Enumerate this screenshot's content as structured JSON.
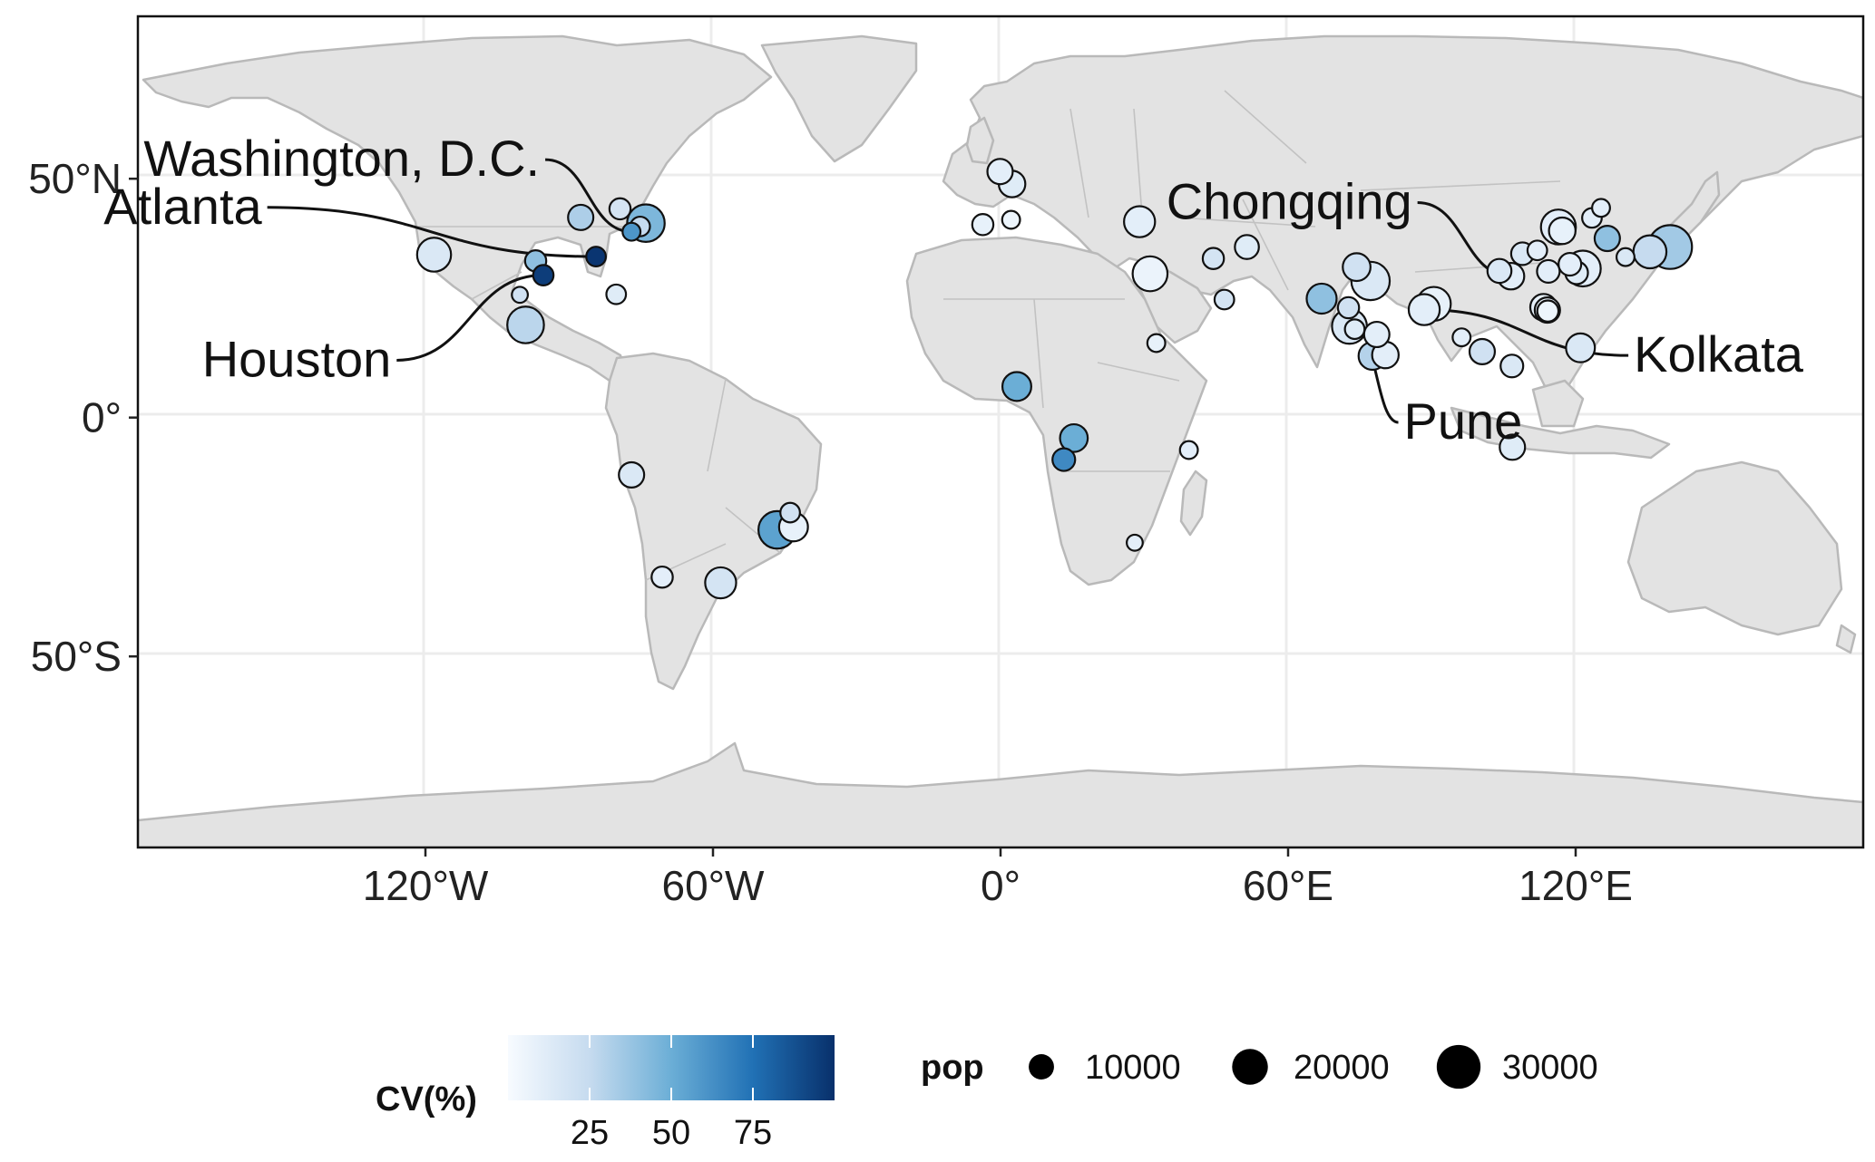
{
  "map": {
    "lon_ticks": [
      {
        "lon": -120,
        "label": "120°W"
      },
      {
        "lon": -60,
        "label": "60°W"
      },
      {
        "lon": 0,
        "label": "0°"
      },
      {
        "lon": 60,
        "label": "60°E"
      },
      {
        "lon": 120,
        "label": "120°E"
      }
    ],
    "lat_ticks": [
      {
        "lat": 50,
        "label": "50°N"
      },
      {
        "lat": 0,
        "label": "0°"
      },
      {
        "lat": -50,
        "label": "50°S"
      }
    ],
    "lon_range": [
      -180,
      180
    ],
    "lat_range": [
      -90,
      84
    ],
    "labels": [
      {
        "text": "Washington, D.C.",
        "lon": -77,
        "lat": 38.9,
        "text_lon": -95,
        "text_lat": 54
      },
      {
        "text": "Atlanta",
        "lon": -84.4,
        "lat": 33.7,
        "text_lon": -153,
        "text_lat": 44
      },
      {
        "text": "Houston",
        "lon": -95.4,
        "lat": 29.8,
        "text_lon": -126,
        "text_lat": 12
      },
      {
        "text": "Chongqing",
        "lon": 106.5,
        "lat": 29.6,
        "text_lon": 87,
        "text_lat": 45
      },
      {
        "text": "Kolkata",
        "lon": 88.4,
        "lat": 22.6,
        "text_lon": 131,
        "text_lat": 13
      },
      {
        "text": "Pune",
        "lon": 73.9,
        "lat": 18.5,
        "text_lon": 83,
        "text_lat": -1
      }
    ]
  },
  "cities": [
    {
      "lon": -118.2,
      "lat": 34.1,
      "pop": 18000,
      "cv": 15
    },
    {
      "lon": -97,
      "lat": 32.8,
      "pop": 7000,
      "cv": 40
    },
    {
      "lon": -95.4,
      "lat": 29.8,
      "pop": 6500,
      "cv": 95
    },
    {
      "lon": -99.1,
      "lat": 19.4,
      "pop": 21000,
      "cv": 28
    },
    {
      "lon": -100.3,
      "lat": 25.7,
      "pop": 4000,
      "cv": 20
    },
    {
      "lon": -87.6,
      "lat": 41.9,
      "pop": 10000,
      "cv": 32
    },
    {
      "lon": -84.4,
      "lat": 33.7,
      "pop": 6000,
      "cv": 98
    },
    {
      "lon": -79.4,
      "lat": 43.7,
      "pop": 7000,
      "cv": 18
    },
    {
      "lon": -74,
      "lat": 40.7,
      "pop": 22000,
      "cv": 45
    },
    {
      "lon": -77,
      "lat": 38.9,
      "pop": 5000,
      "cv": 60
    },
    {
      "lon": -80.2,
      "lat": 25.8,
      "pop": 6000,
      "cv": 12
    },
    {
      "lon": -75.2,
      "lat": 40,
      "pop": 6000,
      "cv": 25
    },
    {
      "lon": -77,
      "lat": -12,
      "pop": 10000,
      "cv": 15
    },
    {
      "lon": -70.6,
      "lat": -33.4,
      "pop": 7000,
      "cv": 10
    },
    {
      "lon": -58.4,
      "lat": -34.6,
      "pop": 15000,
      "cv": 18
    },
    {
      "lon": -46.6,
      "lat": -23.5,
      "pop": 22000,
      "cv": 55
    },
    {
      "lon": -43.2,
      "lat": -22.9,
      "pop": 13000,
      "cv": 8
    },
    {
      "lon": -43.9,
      "lat": -19.9,
      "pop": 6000,
      "cv": 20
    },
    {
      "lon": -0.1,
      "lat": 51.5,
      "pop": 10000,
      "cv": 10
    },
    {
      "lon": 2.4,
      "lat": 48.9,
      "pop": 11000,
      "cv": 12
    },
    {
      "lon": -3.7,
      "lat": 40.4,
      "pop": 7000,
      "cv": 8
    },
    {
      "lon": 2.2,
      "lat": 41.4,
      "pop": 5000,
      "cv": 5
    },
    {
      "lon": 29,
      "lat": 41,
      "pop": 15000,
      "cv": 10
    },
    {
      "lon": 31.2,
      "lat": 30.1,
      "pop": 19000,
      "cv": 6
    },
    {
      "lon": 32.5,
      "lat": 15.6,
      "pop": 5000,
      "cv": 8
    },
    {
      "lon": 3.4,
      "lat": 6.5,
      "pop": 13000,
      "cv": 50
    },
    {
      "lon": 15.3,
      "lat": -4.3,
      "pop": 12000,
      "cv": 50
    },
    {
      "lon": 13.2,
      "lat": -8.8,
      "pop": 8000,
      "cv": 65
    },
    {
      "lon": 39.3,
      "lat": -6.8,
      "pop": 5000,
      "cv": 10
    },
    {
      "lon": 28,
      "lat": -26.2,
      "pop": 4000,
      "cv": 10
    },
    {
      "lon": 44.4,
      "lat": 33.3,
      "pop": 7000,
      "cv": 18
    },
    {
      "lon": 51.4,
      "lat": 35.7,
      "pop": 9000,
      "cv": 12
    },
    {
      "lon": 46.7,
      "lat": 24.7,
      "pop": 6000,
      "cv": 18
    },
    {
      "lon": 67,
      "lat": 24.9,
      "pop": 14000,
      "cv": 40
    },
    {
      "lon": 74.3,
      "lat": 31.5,
      "pop": 12000,
      "cv": 20
    },
    {
      "lon": 77.2,
      "lat": 28.6,
      "pop": 23000,
      "cv": 15
    },
    {
      "lon": 72.8,
      "lat": 19.1,
      "pop": 19000,
      "cv": 15
    },
    {
      "lon": 73.9,
      "lat": 18.5,
      "pop": 6000,
      "cv": 12
    },
    {
      "lon": 72.6,
      "lat": 23,
      "pop": 7000,
      "cv": 20
    },
    {
      "lon": 78.5,
      "lat": 17.4,
      "pop": 10000,
      "cv": 10
    },
    {
      "lon": 77.6,
      "lat": 12.9,
      "pop": 12000,
      "cv": 30
    },
    {
      "lon": 80.3,
      "lat": 13.1,
      "pop": 11000,
      "cv": 10
    },
    {
      "lon": 88.4,
      "lat": 22.6,
      "pop": 15000,
      "cv": 10
    },
    {
      "lon": 90.4,
      "lat": 23.8,
      "pop": 18000,
      "cv": 8
    },
    {
      "lon": 96.2,
      "lat": 16.8,
      "pop": 5000,
      "cv": 10
    },
    {
      "lon": 100.5,
      "lat": 13.8,
      "pop": 10000,
      "cv": 20
    },
    {
      "lon": 106.7,
      "lat": 10.8,
      "pop": 8000,
      "cv": 15
    },
    {
      "lon": 106.8,
      "lat": -6.2,
      "pop": 10000,
      "cv": 12
    },
    {
      "lon": 121,
      "lat": 14.6,
      "pop": 13000,
      "cv": 15
    },
    {
      "lon": 104.1,
      "lat": 30.7,
      "pop": 9000,
      "cv": 15
    },
    {
      "lon": 106.5,
      "lat": 29.6,
      "pop": 11000,
      "cv": 10
    },
    {
      "lon": 108.9,
      "lat": 34.3,
      "pop": 8000,
      "cv": 15
    },
    {
      "lon": 114.3,
      "lat": 30.6,
      "pop": 8000,
      "cv": 10
    },
    {
      "lon": 116.4,
      "lat": 39.9,
      "pop": 19000,
      "cv": 10
    },
    {
      "lon": 117.2,
      "lat": 39.1,
      "pop": 11000,
      "cv": 8
    },
    {
      "lon": 121.5,
      "lat": 31.2,
      "pop": 20000,
      "cv": 10
    },
    {
      "lon": 120.2,
      "lat": 30.3,
      "pop": 8000,
      "cv": 12
    },
    {
      "lon": 118.8,
      "lat": 32.1,
      "pop": 8000,
      "cv": 10
    },
    {
      "lon": 113.3,
      "lat": 23.1,
      "pop": 11000,
      "cv": 8
    },
    {
      "lon": 114.1,
      "lat": 22.5,
      "pop": 10000,
      "cv": 8
    },
    {
      "lon": 114.2,
      "lat": 22.3,
      "pop": 7000,
      "cv": 5
    },
    {
      "lon": 123.4,
      "lat": 41.8,
      "pop": 6000,
      "cv": 10
    },
    {
      "lon": 126.6,
      "lat": 37.5,
      "pop": 10000,
      "cv": 40
    },
    {
      "lon": 135.5,
      "lat": 34.7,
      "pop": 17000,
      "cv": 25
    },
    {
      "lon": 139.7,
      "lat": 35.7,
      "pop": 30000,
      "cv": 35
    },
    {
      "lon": 130.4,
      "lat": 33.6,
      "pop": 5000,
      "cv": 15
    },
    {
      "lon": 112,
      "lat": 35,
      "pop": 6000,
      "cv": 10
    },
    {
      "lon": 125.3,
      "lat": 43.9,
      "pop": 5000,
      "cv": 10
    }
  ],
  "legend": {
    "cv_title": "CV(%)",
    "cv_ticks": [
      {
        "value": 25,
        "label": "25"
      },
      {
        "value": 50,
        "label": "50"
      },
      {
        "value": 75,
        "label": "75"
      }
    ],
    "cv_range": [
      0,
      100
    ],
    "pop_title": "pop",
    "pop_entries": [
      {
        "value": 10000,
        "label": "10000"
      },
      {
        "value": 20000,
        "label": "20000"
      },
      {
        "value": 30000,
        "label": "30000"
      }
    ],
    "colors": {
      "low": "#f7fbff",
      "mid": "#6baed6",
      "high": "#08306b"
    }
  }
}
